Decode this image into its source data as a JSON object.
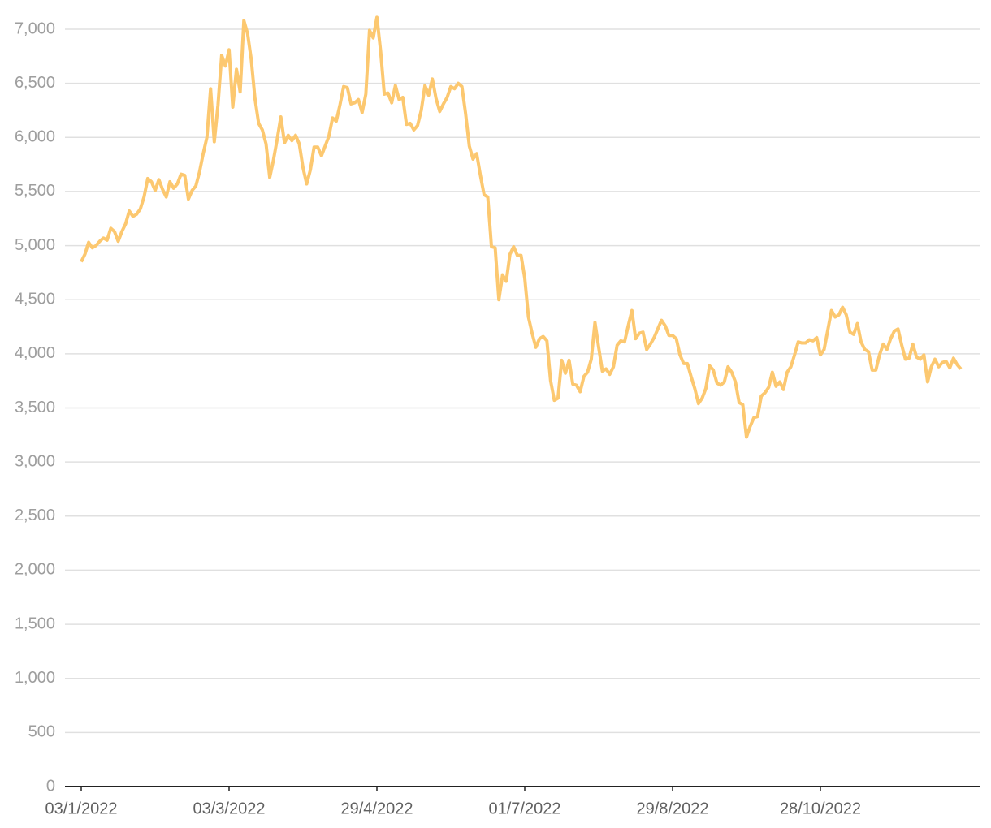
{
  "chart_data": {
    "type": "line",
    "categories": [
      "03/1/2022",
      null,
      null,
      null,
      null,
      null,
      null,
      null,
      null,
      null,
      null,
      null,
      null,
      null,
      null,
      null,
      null,
      null,
      null,
      null,
      null,
      null,
      null,
      null,
      null,
      null,
      null,
      null,
      null,
      null,
      null,
      null,
      null,
      null,
      null,
      null,
      null,
      null,
      null,
      null,
      "03/3/2022",
      null,
      null,
      null,
      null,
      null,
      null,
      null,
      null,
      null,
      null,
      null,
      null,
      null,
      null,
      null,
      null,
      null,
      null,
      null,
      null,
      null,
      null,
      null,
      null,
      null,
      null,
      null,
      null,
      null,
      null,
      null,
      null,
      null,
      null,
      null,
      null,
      null,
      null,
      null,
      "29/4/2022",
      null,
      null,
      null,
      null,
      null,
      null,
      null,
      null,
      null,
      null,
      null,
      null,
      null,
      null,
      null,
      null,
      null,
      null,
      null,
      null,
      null,
      null,
      null,
      null,
      null,
      null,
      null,
      null,
      null,
      null,
      null,
      null,
      null,
      null,
      null,
      null,
      null,
      null,
      null,
      "01/7/2022",
      null,
      null,
      null,
      null,
      null,
      null,
      null,
      null,
      null,
      null,
      null,
      null,
      null,
      null,
      null,
      null,
      null,
      null,
      null,
      null,
      null,
      null,
      null,
      null,
      null,
      null,
      null,
      null,
      null,
      null,
      null,
      null,
      null,
      null,
      null,
      null,
      null,
      null,
      null,
      "29/8/2022",
      null,
      null,
      null,
      null,
      null,
      null,
      null,
      null,
      null,
      null,
      null,
      null,
      null,
      null,
      null,
      null,
      null,
      null,
      null,
      null,
      null,
      null,
      null,
      null,
      null,
      null,
      null,
      null,
      null,
      null,
      null,
      null,
      null,
      null,
      null,
      null,
      null,
      null,
      null,
      "28/10/2022",
      null,
      null,
      null,
      null,
      null,
      null,
      null,
      null,
      null,
      null,
      null,
      null,
      null,
      null,
      null,
      null,
      null,
      null,
      null,
      null,
      null,
      null,
      null,
      null,
      null,
      null,
      null,
      null,
      null,
      null,
      null,
      null,
      null,
      null,
      null,
      null,
      null,
      null
    ],
    "series": [
      {
        "color": "#fcc870",
        "values": [
          4850,
          4920,
          5030,
          4980,
          5000,
          5040,
          5070,
          5050,
          5160,
          5130,
          5040,
          5130,
          5200,
          5320,
          5270,
          5290,
          5340,
          5450,
          5620,
          5590,
          5510,
          5610,
          5520,
          5450,
          5590,
          5530,
          5570,
          5660,
          5650,
          5430,
          5510,
          5550,
          5680,
          5850,
          6000,
          6450,
          5960,
          6300,
          6760,
          6660,
          6810,
          6280,
          6630,
          6420,
          7080,
          6960,
          6720,
          6360,
          6130,
          6070,
          5940,
          5630,
          5790,
          5980,
          6190,
          5950,
          6020,
          5970,
          6020,
          5940,
          5720,
          5570,
          5700,
          5910,
          5910,
          5830,
          5920,
          6010,
          6180,
          6150,
          6300,
          6470,
          6460,
          6310,
          6320,
          6350,
          6230,
          6400,
          6990,
          6920,
          7110,
          6800,
          6400,
          6410,
          6320,
          6480,
          6350,
          6370,
          6120,
          6130,
          6070,
          6110,
          6250,
          6480,
          6390,
          6540,
          6360,
          6240,
          6310,
          6370,
          6470,
          6450,
          6500,
          6470,
          6220,
          5920,
          5800,
          5850,
          5650,
          5470,
          5450,
          4990,
          4980,
          4500,
          4730,
          4670,
          4920,
          4990,
          4910,
          4910,
          4700,
          4340,
          4190,
          4060,
          4140,
          4160,
          4120,
          3750,
          3570,
          3590,
          3940,
          3820,
          3940,
          3720,
          3710,
          3650,
          3790,
          3830,
          3950,
          4290,
          4060,
          3840,
          3860,
          3810,
          3880,
          4080,
          4120,
          4110,
          4260,
          4400,
          4140,
          4190,
          4200,
          4040,
          4090,
          4150,
          4230,
          4310,
          4260,
          4170,
          4170,
          4140,
          3990,
          3910,
          3910,
          3790,
          3680,
          3540,
          3590,
          3680,
          3890,
          3850,
          3730,
          3710,
          3740,
          3880,
          3830,
          3740,
          3550,
          3530,
          3230,
          3330,
          3410,
          3420,
          3610,
          3640,
          3690,
          3830,
          3700,
          3740,
          3670,
          3830,
          3880,
          3990,
          4110,
          4100,
          4100,
          4130,
          4120,
          4150,
          3990,
          4040,
          4220,
          4400,
          4340,
          4360,
          4430,
          4360,
          4200,
          4180,
          4280,
          4110,
          4040,
          4020,
          3850,
          3850,
          3990,
          4090,
          4040,
          4140,
          4210,
          4230,
          4080,
          3950,
          3960,
          4090,
          3970,
          3950,
          3990,
          3740,
          3880,
          3950,
          3880,
          3920,
          3930,
          3870,
          3960,
          3900,
          3860
        ]
      }
    ],
    "ylim": [
      0,
      7000
    ],
    "yticks": [
      0,
      500,
      {
        "value": 1000,
        "label": "1,000"
      },
      {
        "value": 1500,
        "label": "1,500"
      },
      {
        "value": 2000,
        "label": "2,000"
      },
      {
        "value": 2500,
        "label": "2,500"
      },
      {
        "value": 3000,
        "label": "3,000"
      },
      {
        "value": 3500,
        "label": "3,500"
      },
      {
        "value": 4000,
        "label": "4,000"
      },
      {
        "value": 4500,
        "label": "4,500"
      },
      {
        "value": 5000,
        "label": "5,000"
      },
      {
        "value": 5500,
        "label": "5,500"
      },
      {
        "value": 6000,
        "label": "6,000"
      },
      {
        "value": 6500,
        "label": "6,500"
      },
      {
        "value": 7000,
        "label": "7,000"
      }
    ],
    "grid": true
  }
}
